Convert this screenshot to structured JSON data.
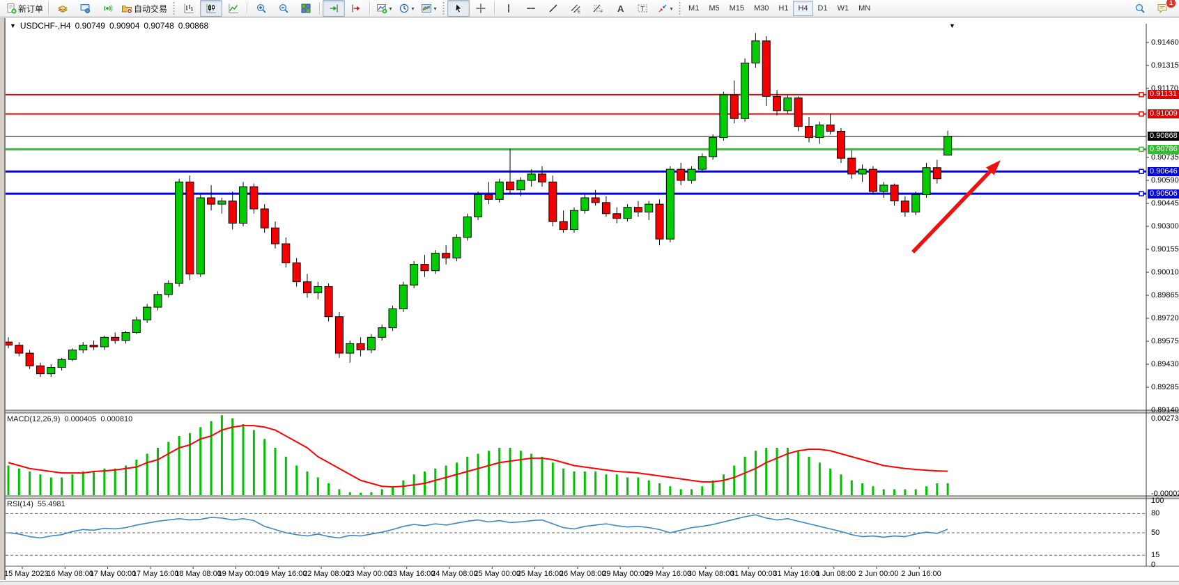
{
  "toolbar": {
    "new_order_label": "新订单",
    "auto_trading_label": "自动交易",
    "notification_badge": "1",
    "buttons": [
      {
        "type": "btn",
        "name": "new-order-button",
        "icon": "new-order",
        "label_key": "new_order_label"
      },
      {
        "type": "sep"
      },
      {
        "type": "btn",
        "name": "market-watch-button",
        "icon": "market-watch"
      },
      {
        "type": "btn",
        "name": "navigator-button",
        "icon": "navigator"
      },
      {
        "type": "btn",
        "name": "signal-button",
        "icon": "signal"
      },
      {
        "type": "btn",
        "name": "auto-trading-button",
        "icon": "auto-trading",
        "label_key": "auto_trading_label"
      },
      {
        "type": "dotsep"
      },
      {
        "type": "btn",
        "name": "bar-chart-button",
        "icon": "chart-bars"
      },
      {
        "type": "btn",
        "name": "candlestick-chart-button",
        "icon": "chart-candles",
        "pressed": true
      },
      {
        "type": "btn",
        "name": "line-chart-button",
        "icon": "chart-line"
      },
      {
        "type": "sep"
      },
      {
        "type": "btn",
        "name": "zoom-in-button",
        "icon": "zoom-in"
      },
      {
        "type": "btn",
        "name": "zoom-out-button",
        "icon": "zoom-out"
      },
      {
        "type": "btn",
        "name": "tile-windows-button",
        "icon": "tile-windows"
      },
      {
        "type": "sep"
      },
      {
        "type": "btn",
        "name": "auto-scroll-button",
        "icon": "auto-scroll",
        "pressed": true
      },
      {
        "type": "btn",
        "name": "chart-shift-button",
        "icon": "chart-shift"
      },
      {
        "type": "sep"
      },
      {
        "type": "btn",
        "name": "indicators-button",
        "icon": "indicators",
        "dd": true
      },
      {
        "type": "btn",
        "name": "periods-button",
        "icon": "clock",
        "dd": true
      },
      {
        "type": "btn",
        "name": "templates-button",
        "icon": "template",
        "dd": true
      },
      {
        "type": "dotsep"
      },
      {
        "type": "btn",
        "name": "cursor-button",
        "icon": "cursor",
        "pressed": true
      },
      {
        "type": "btn",
        "name": "crosshair-button",
        "icon": "crosshair"
      },
      {
        "type": "sep"
      },
      {
        "type": "btn",
        "name": "vertical-line-button",
        "icon": "vline"
      },
      {
        "type": "btn",
        "name": "horizontal-line-button",
        "icon": "hline"
      },
      {
        "type": "btn",
        "name": "trendline-button",
        "icon": "trendline"
      },
      {
        "type": "btn",
        "name": "channel-button",
        "icon": "channel"
      },
      {
        "type": "btn",
        "name": "fibonacci-button",
        "icon": "fibonacci"
      },
      {
        "type": "btn",
        "name": "text-button",
        "icon": "text"
      },
      {
        "type": "btn",
        "name": "text-label-button",
        "icon": "text-label"
      },
      {
        "type": "btn",
        "name": "arrows-button",
        "icon": "arrows",
        "dd": true
      },
      {
        "type": "dotsep"
      }
    ],
    "timeframes": [
      "M1",
      "M5",
      "M15",
      "M30",
      "H1",
      "H4",
      "D1",
      "W1",
      "MN"
    ],
    "active_timeframe": "H4"
  },
  "chart": {
    "title": "USDCHF-,H4",
    "open": "0.90749",
    "high": "0.90904",
    "low": "0.90748",
    "close": "0.90868",
    "price_ticks": [
      "0.91460",
      "0.91315",
      "0.91170",
      "0.90735",
      "0.90590",
      "0.90445",
      "0.90300",
      "0.90155",
      "0.90010",
      "0.89865",
      "0.89720",
      "0.89575",
      "0.89430",
      "0.89285",
      "0.89140"
    ],
    "hlines": [
      {
        "price": 0.91131,
        "label": "0.91131",
        "color": "#e00000",
        "width": 2
      },
      {
        "price": 0.91009,
        "label": "0.91009",
        "color": "#e00000",
        "width": 2
      },
      {
        "price": 0.90868,
        "label": "0.90868",
        "color": "#000000",
        "width": 1
      },
      {
        "price": 0.90786,
        "label": "0.90786",
        "color": "#2fbf2f",
        "width": 3
      },
      {
        "price": 0.90646,
        "label": "0.90646",
        "color": "#0000e6",
        "width": 3
      },
      {
        "price": 0.90506,
        "label": "0.90506",
        "color": "#0000e6",
        "width": 3
      }
    ],
    "colors": {
      "bull": "#00cc00",
      "bear": "#f40000",
      "outline": "#000000",
      "arrow": "#ee1111"
    },
    "shift_marker": "▼"
  },
  "macd": {
    "label": "MACD(12,26,9)",
    "value_main": "0.000405",
    "value_signal": "0.000810",
    "axis_max": "0.00273",
    "axis_min": "-0.000024",
    "hist_color": "#00c000",
    "signal_color": "#ff0000"
  },
  "rsi": {
    "label": "RSI(14)",
    "value": "55.4981",
    "axis_labels": [
      "100",
      "80",
      "50",
      "15",
      "0"
    ],
    "levels": [
      80,
      50,
      15
    ],
    "line_color": "#3d85c8"
  },
  "time_axis": {
    "labels": [
      "15 May 2023",
      "16 May 08:00",
      "17 May 00:00",
      "17 May 16:00",
      "18 May 08:00",
      "19 May 00:00",
      "19 May 16:00",
      "22 May 08:00",
      "23 May 00:00",
      "23 May 16:00",
      "24 May 08:00",
      "25 May 00:00",
      "25 May 16:00",
      "26 May 08:00",
      "29 May 00:00",
      "29 May 16:00",
      "30 May 08:00",
      "31 May 00:00",
      "31 May 16:00",
      "1 Jun 08:00",
      "2 Jun 00:00",
      "2 Jun 16:00"
    ]
  },
  "chart_data": [
    {
      "type": "candlestick",
      "symbol": "USDCHF",
      "timeframe": "H4",
      "ylim": [
        0.8914,
        0.9146
      ],
      "ohlc": [
        [
          0.8957,
          0.896,
          0.8953,
          0.8955
        ],
        [
          0.8955,
          0.8957,
          0.8948,
          0.895
        ],
        [
          0.895,
          0.8952,
          0.894,
          0.8942
        ],
        [
          0.8942,
          0.8944,
          0.8935,
          0.8937
        ],
        [
          0.8937,
          0.8943,
          0.8935,
          0.8941
        ],
        [
          0.8941,
          0.8947,
          0.8939,
          0.8946
        ],
        [
          0.8946,
          0.8953,
          0.8945,
          0.8952
        ],
        [
          0.8952,
          0.8957,
          0.895,
          0.8955
        ],
        [
          0.8955,
          0.8958,
          0.8952,
          0.8954
        ],
        [
          0.8954,
          0.8961,
          0.8952,
          0.896
        ],
        [
          0.896,
          0.8963,
          0.8956,
          0.8958
        ],
        [
          0.8958,
          0.8964,
          0.8956,
          0.8963
        ],
        [
          0.8963,
          0.8973,
          0.8962,
          0.8971
        ],
        [
          0.8971,
          0.8981,
          0.8969,
          0.8979
        ],
        [
          0.8979,
          0.8989,
          0.8977,
          0.8987
        ],
        [
          0.8987,
          0.8996,
          0.8985,
          0.8994
        ],
        [
          0.8994,
          0.906,
          0.8992,
          0.9058
        ],
        [
          0.9058,
          0.9062,
          0.8996,
          0.9
        ],
        [
          0.9,
          0.905,
          0.8998,
          0.9048
        ],
        [
          0.9048,
          0.9056,
          0.904,
          0.9044
        ],
        [
          0.9044,
          0.9048,
          0.9038,
          0.9046
        ],
        [
          0.9046,
          0.9052,
          0.9028,
          0.9032
        ],
        [
          0.9032,
          0.9058,
          0.903,
          0.9055
        ],
        [
          0.9055,
          0.9057,
          0.9038,
          0.9041
        ],
        [
          0.9041,
          0.9044,
          0.9026,
          0.9029
        ],
        [
          0.9029,
          0.9033,
          0.9016,
          0.9019
        ],
        [
          0.9019,
          0.9023,
          0.9004,
          0.9007
        ],
        [
          0.9007,
          0.901,
          0.8992,
          0.8995
        ],
        [
          0.8995,
          0.9,
          0.8985,
          0.8988
        ],
        [
          0.8988,
          0.8995,
          0.8984,
          0.8992
        ],
        [
          0.8992,
          0.8994,
          0.897,
          0.8973
        ],
        [
          0.8973,
          0.8976,
          0.8947,
          0.895
        ],
        [
          0.895,
          0.8958,
          0.8944,
          0.8956
        ],
        [
          0.8956,
          0.896,
          0.8948,
          0.8952
        ],
        [
          0.8952,
          0.8962,
          0.895,
          0.896
        ],
        [
          0.896,
          0.8968,
          0.8958,
          0.8966
        ],
        [
          0.8966,
          0.898,
          0.8964,
          0.8978
        ],
        [
          0.8978,
          0.8995,
          0.8976,
          0.8993
        ],
        [
          0.8993,
          0.9008,
          0.8991,
          0.9006
        ],
        [
          0.9006,
          0.9012,
          0.8998,
          0.9002
        ],
        [
          0.9002,
          0.9015,
          0.9,
          0.9013
        ],
        [
          0.9013,
          0.9018,
          0.9006,
          0.901
        ],
        [
          0.901,
          0.9025,
          0.9008,
          0.9023
        ],
        [
          0.9023,
          0.9038,
          0.9021,
          0.9036
        ],
        [
          0.9036,
          0.9052,
          0.9034,
          0.905
        ],
        [
          0.905,
          0.9058,
          0.9044,
          0.9047
        ],
        [
          0.9047,
          0.906,
          0.9045,
          0.9058
        ],
        [
          0.9058,
          0.9079,
          0.905,
          0.9053
        ],
        [
          0.9053,
          0.9061,
          0.9049,
          0.9059
        ],
        [
          0.9059,
          0.9066,
          0.9055,
          0.9063
        ],
        [
          0.9063,
          0.9068,
          0.9055,
          0.9058
        ],
        [
          0.9058,
          0.9062,
          0.903,
          0.9033
        ],
        [
          0.9033,
          0.904,
          0.9026,
          0.9028
        ],
        [
          0.9028,
          0.9042,
          0.9026,
          0.904
        ],
        [
          0.904,
          0.905,
          0.9038,
          0.9048
        ],
        [
          0.9048,
          0.9053,
          0.9043,
          0.9045
        ],
        [
          0.9045,
          0.9049,
          0.9036,
          0.9038
        ],
        [
          0.9038,
          0.9042,
          0.9032,
          0.9035
        ],
        [
          0.9035,
          0.9044,
          0.9033,
          0.9042
        ],
        [
          0.9042,
          0.9046,
          0.9036,
          0.9039
        ],
        [
          0.9039,
          0.9046,
          0.9034,
          0.9044
        ],
        [
          0.9044,
          0.9047,
          0.9018,
          0.9022
        ],
        [
          0.9022,
          0.9068,
          0.902,
          0.9066
        ],
        [
          0.9066,
          0.907,
          0.9056,
          0.9059
        ],
        [
          0.9059,
          0.9068,
          0.9057,
          0.9066
        ],
        [
          0.9066,
          0.9076,
          0.9064,
          0.9074
        ],
        [
          0.9074,
          0.9088,
          0.9072,
          0.9086
        ],
        [
          0.9086,
          0.9115,
          0.9084,
          0.9113
        ],
        [
          0.9113,
          0.9122,
          0.9095,
          0.9098
        ],
        [
          0.9098,
          0.9136,
          0.9096,
          0.9133
        ],
        [
          0.9133,
          0.9152,
          0.913,
          0.9147
        ],
        [
          0.9147,
          0.915,
          0.9106,
          0.9112
        ],
        [
          0.9112,
          0.9116,
          0.91,
          0.9103
        ],
        [
          0.9103,
          0.9113,
          0.9101,
          0.9111
        ],
        [
          0.9111,
          0.9112,
          0.909,
          0.9093
        ],
        [
          0.9093,
          0.9099,
          0.9083,
          0.9086
        ],
        [
          0.9086,
          0.9096,
          0.9082,
          0.9094
        ],
        [
          0.9094,
          0.9101,
          0.9088,
          0.909
        ],
        [
          0.909,
          0.9092,
          0.907,
          0.9073
        ],
        [
          0.9073,
          0.9078,
          0.906,
          0.9063
        ],
        [
          0.9063,
          0.9069,
          0.9058,
          0.9066
        ],
        [
          0.9066,
          0.9068,
          0.905,
          0.9052
        ],
        [
          0.9052,
          0.9058,
          0.9048,
          0.9056
        ],
        [
          0.9056,
          0.9057,
          0.9043,
          0.9046
        ],
        [
          0.9046,
          0.9049,
          0.9036,
          0.9039
        ],
        [
          0.9039,
          0.9052,
          0.9037,
          0.905
        ],
        [
          0.905,
          0.907,
          0.9048,
          0.9067
        ],
        [
          0.9067,
          0.9072,
          0.9057,
          0.906
        ],
        [
          0.90749,
          0.90904,
          0.90748,
          0.90868
        ]
      ]
    },
    {
      "type": "bar",
      "name": "MACD(12,26,9)",
      "ylim": [
        -2.4e-05,
        0.00273
      ],
      "values": [
        0.001,
        0.0009,
        0.0008,
        0.0007,
        0.0006,
        0.0006,
        0.0007,
        0.0008,
        0.0008,
        0.0009,
        0.0009,
        0.001,
        0.0012,
        0.0014,
        0.0016,
        0.0018,
        0.002,
        0.0021,
        0.0023,
        0.0025,
        0.0027,
        0.0026,
        0.0024,
        0.0022,
        0.0019,
        0.0016,
        0.0013,
        0.001,
        0.0008,
        0.0006,
        0.0004,
        0.0002,
        0.0001,
        8e-05,
        0.0001,
        0.0002,
        0.0003,
        0.0005,
        0.0007,
        0.0008,
        0.0009,
        0.001,
        0.0011,
        0.0013,
        0.0014,
        0.0015,
        0.0016,
        0.0016,
        0.0015,
        0.0014,
        0.0013,
        0.0011,
        0.0009,
        0.0008,
        0.0008,
        0.0008,
        0.0007,
        0.0007,
        0.0006,
        0.0006,
        0.0005,
        0.0004,
        0.0003,
        0.0002,
        0.0002,
        0.0003,
        0.0005,
        0.0007,
        0.001,
        0.0013,
        0.0015,
        0.0016,
        0.0016,
        0.0016,
        0.0015,
        0.0013,
        0.0011,
        0.0009,
        0.0007,
        0.0005,
        0.0004,
        0.0003,
        0.0002,
        0.0002,
        0.0002,
        0.0002,
        0.0003,
        0.0004,
        0.000405
      ],
      "signal": [
        0.0011,
        0.001,
        0.0009,
        0.00085,
        0.0008,
        0.00075,
        0.00075,
        0.00075,
        0.0008,
        0.00082,
        0.00085,
        0.0009,
        0.00095,
        0.0011,
        0.0012,
        0.0014,
        0.0016,
        0.0017,
        0.0019,
        0.002,
        0.0022,
        0.0023,
        0.00235,
        0.00235,
        0.0023,
        0.0022,
        0.002,
        0.0018,
        0.0016,
        0.0013,
        0.0011,
        0.0009,
        0.0007,
        0.0005,
        0.0004,
        0.0003,
        0.00028,
        0.0003,
        0.00035,
        0.0004,
        0.0005,
        0.0006,
        0.0007,
        0.0008,
        0.0009,
        0.001,
        0.0011,
        0.00115,
        0.0012,
        0.00125,
        0.00125,
        0.0012,
        0.0011,
        0.001,
        0.00095,
        0.0009,
        0.00085,
        0.0008,
        0.00078,
        0.00075,
        0.0007,
        0.00065,
        0.0006,
        0.00055,
        0.0005,
        0.00045,
        0.00045,
        0.0005,
        0.0006,
        0.00075,
        0.0009,
        0.0011,
        0.00125,
        0.0014,
        0.0015,
        0.00155,
        0.00155,
        0.0015,
        0.0014,
        0.0013,
        0.0012,
        0.0011,
        0.001,
        0.00095,
        0.0009,
        0.00087,
        0.00084,
        0.00082,
        0.00081
      ]
    },
    {
      "type": "line",
      "name": "RSI(14)",
      "ylim": [
        0,
        100
      ],
      "levels": [
        80,
        50,
        15
      ],
      "values": [
        50,
        48,
        44,
        42,
        45,
        47,
        52,
        55,
        54,
        57,
        56,
        58,
        62,
        65,
        68,
        70,
        72,
        70,
        71,
        74,
        73,
        70,
        72,
        69,
        60,
        55,
        50,
        47,
        45,
        48,
        44,
        42,
        46,
        45,
        48,
        51,
        55,
        60,
        63,
        61,
        64,
        62,
        65,
        68,
        70,
        67,
        69,
        66,
        67,
        69,
        70,
        64,
        58,
        56,
        60,
        62,
        64,
        61,
        59,
        60,
        58,
        55,
        50,
        54,
        58,
        60,
        63,
        67,
        71,
        75,
        78,
        73,
        70,
        72,
        68,
        64,
        60,
        56,
        52,
        47,
        44,
        45,
        43,
        45,
        44,
        48,
        51,
        49,
        55.4981
      ]
    }
  ]
}
